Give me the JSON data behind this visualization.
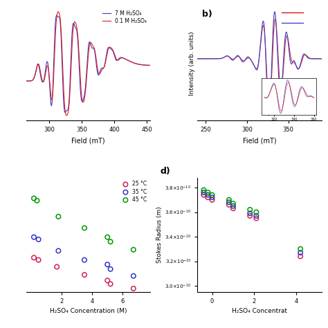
{
  "panel_a": {
    "xlabel": "Field (mT)",
    "xlim": [
      265,
      455
    ],
    "xticks": [
      300,
      350,
      400,
      450
    ],
    "legend": [
      "7 M H₂SO₄",
      "0.1 M H₂SO₄"
    ],
    "colors": [
      "#4444cc",
      "#dd1111"
    ],
    "peaks": [
      285,
      295,
      307,
      320,
      333,
      346,
      358,
      372,
      387,
      400
    ],
    "amplitudes": [
      0.18,
      -0.22,
      -0.9,
      0.85,
      -0.78,
      0.62,
      -0.45,
      0.28,
      -0.18,
      0.1
    ]
  },
  "panel_b": {
    "xlabel": "Field (mT)",
    "ylabel": "Intensity (arb. units)",
    "xlim": [
      240,
      390
    ],
    "xticks": [
      250,
      300,
      350
    ],
    "colors": [
      "#dd1111",
      "#4444cc"
    ],
    "peaks_small": [
      280,
      292,
      304
    ],
    "amps_small": [
      0.12,
      0.18,
      0.14
    ],
    "peaks_main": [
      315,
      323,
      330,
      337,
      344,
      351,
      358,
      366
    ],
    "amps_main": [
      -0.3,
      0.95,
      -0.85,
      0.65,
      -0.5,
      0.35,
      0.2,
      -0.15
    ]
  },
  "panel_c": {
    "xlabel": "H₂SO₄ Concentration (M)",
    "xlim": [
      -0.3,
      7.8
    ],
    "ylim": [
      0.0,
      1.0
    ],
    "xticks": [
      2,
      4,
      6
    ],
    "legend": [
      "25 °C",
      "35 °C",
      "45 °C"
    ],
    "colors": [
      "#cc2255",
      "#3333cc",
      "#009900"
    ],
    "data_25": [
      [
        0.2,
        0.3
      ],
      [
        0.5,
        0.28
      ],
      [
        1.7,
        0.22
      ],
      [
        3.5,
        0.15
      ],
      [
        5.0,
        0.1
      ],
      [
        5.2,
        0.07
      ],
      [
        6.7,
        0.03
      ]
    ],
    "data_35": [
      [
        0.2,
        0.48
      ],
      [
        0.5,
        0.46
      ],
      [
        1.8,
        0.36
      ],
      [
        3.5,
        0.28
      ],
      [
        5.0,
        0.24
      ],
      [
        5.2,
        0.2
      ],
      [
        6.7,
        0.14
      ]
    ],
    "data_45": [
      [
        0.2,
        0.82
      ],
      [
        0.4,
        0.8
      ],
      [
        1.8,
        0.66
      ],
      [
        3.5,
        0.56
      ],
      [
        5.0,
        0.48
      ],
      [
        5.2,
        0.44
      ],
      [
        6.7,
        0.37
      ]
    ]
  },
  "panel_d": {
    "xlabel": "H₂SO₄ Concentrat",
    "ylabel": "Stokes Radius (m)",
    "xlim": [
      -0.7,
      5.2
    ],
    "xticks": [
      0,
      2,
      4
    ],
    "ylim": [
      2.95e-10,
      3.88e-10
    ],
    "yticks": [
      3e-10,
      3.2e-10,
      3.4e-10,
      3.6e-10,
      3.8e-10
    ],
    "colors": [
      "#cc2255",
      "#3333cc",
      "#009900"
    ],
    "data_25": [
      [
        -0.4,
        3.74e-10
      ],
      [
        -0.2,
        3.72e-10
      ],
      [
        0.0,
        3.7e-10
      ],
      [
        0.8,
        3.66e-10
      ],
      [
        1.0,
        3.63e-10
      ],
      [
        1.8,
        3.57e-10
      ],
      [
        2.1,
        3.55e-10
      ],
      [
        4.2,
        3.24e-10
      ]
    ],
    "data_35": [
      [
        -0.4,
        3.76e-10
      ],
      [
        -0.2,
        3.74e-10
      ],
      [
        0.0,
        3.72e-10
      ],
      [
        0.8,
        3.68e-10
      ],
      [
        1.0,
        3.65e-10
      ],
      [
        1.8,
        3.59e-10
      ],
      [
        2.1,
        3.57e-10
      ],
      [
        4.2,
        3.27e-10
      ]
    ],
    "data_45": [
      [
        -0.4,
        3.78e-10
      ],
      [
        -0.2,
        3.76e-10
      ],
      [
        0.0,
        3.74e-10
      ],
      [
        0.8,
        3.7e-10
      ],
      [
        1.0,
        3.67e-10
      ],
      [
        1.8,
        3.62e-10
      ],
      [
        2.1,
        3.6e-10
      ],
      [
        4.2,
        3.3e-10
      ]
    ]
  }
}
